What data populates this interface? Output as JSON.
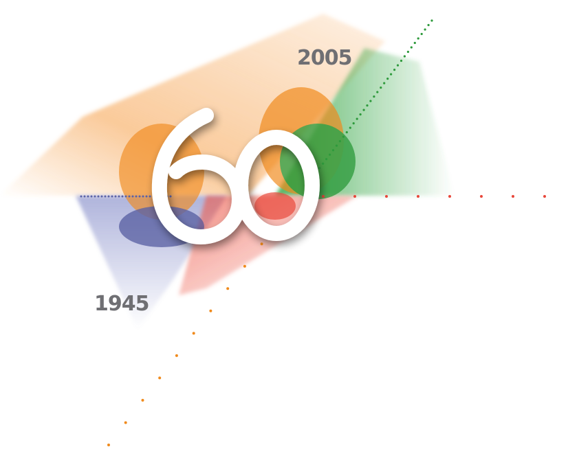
{
  "emblem": {
    "number": "60",
    "start_year": "1945",
    "end_year": "2005"
  },
  "colors": {
    "orange": "#f08a1c",
    "green": "#2e9a3c",
    "blue": "#5a62a8",
    "red": "#e8473a",
    "label_gray": "#6f6f73",
    "number_white": "#ffffff"
  }
}
